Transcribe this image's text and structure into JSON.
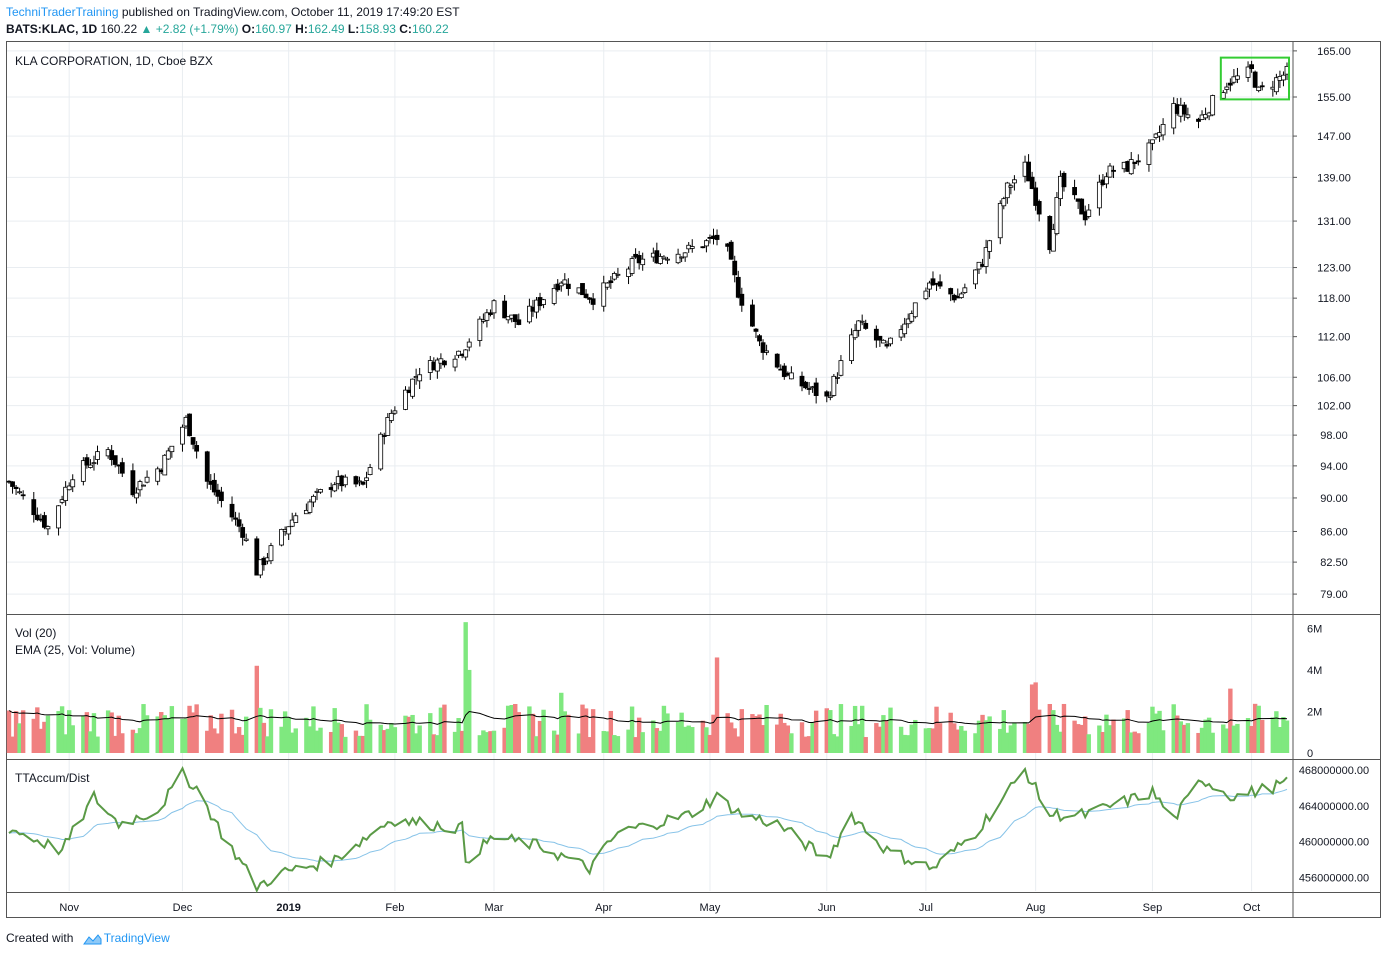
{
  "header": {
    "author": "TechniTraderTraining",
    "published": " published on TradingView.com, October 11, 2019 17:49:20 EST",
    "symbol": "BATS:KLAC, 1D",
    "last": "160.22",
    "change": "▲ +2.82 (+1.79%)",
    "ohlc_o_label": "O:",
    "ohlc_o": "160.97",
    "ohlc_h_label": "H:",
    "ohlc_h": "162.49",
    "ohlc_l_label": "L:",
    "ohlc_l": "158.93",
    "ohlc_c_label": "C:",
    "ohlc_c": "160.22"
  },
  "panes": {
    "price_title": "KLA CORPORATION, 1D, Cboe BZX",
    "volume_title": "Vol (20)",
    "volume_ema_title": "EMA (25, Vol: Volume)",
    "accum_title": "TTAccum/Dist"
  },
  "footer": {
    "created_with": "Created with",
    "brand": "TradingView"
  },
  "colors": {
    "up_volume": "#7fe87f",
    "down_volume": "#f08080",
    "accum_line": "#5a9a46",
    "accum_signal": "#87c3e8",
    "highlight_box": "#33cc33",
    "brand": "#2196f3"
  },
  "chart_data": [
    {
      "type": "candlestick",
      "pane": "price",
      "x_ticks": [
        "Nov",
        "Dec",
        "2019",
        "Feb",
        "Mar",
        "Apr",
        "May",
        "Jun",
        "Jul",
        "Aug",
        "Sep",
        "Oct"
      ],
      "y_ticks": [
        "165.00",
        "155.00",
        "147.00",
        "139.00",
        "131.00",
        "123.00",
        "118.00",
        "112.00",
        "106.00",
        "102.00",
        "98.00",
        "94.00",
        "90.00",
        "86.00",
        "82.50",
        "79.00"
      ],
      "y_scale": "log",
      "ylim": [
        77,
        167
      ],
      "anchors": [
        [
          "2018-10-15",
          92
        ],
        [
          "2018-10-26",
          86.5
        ],
        [
          "2018-11-02",
          93
        ],
        [
          "2018-11-12",
          96
        ],
        [
          "2018-11-19",
          91
        ],
        [
          "2018-11-27",
          94
        ],
        [
          "2018-12-04",
          100
        ],
        [
          "2018-12-10",
          92
        ],
        [
          "2018-12-20",
          86
        ],
        [
          "2018-12-24",
          81.5
        ],
        [
          "2019-01-04",
          88
        ],
        [
          "2019-01-15",
          92
        ],
        [
          "2019-01-23",
          91.5
        ],
        [
          "2019-01-31",
          101
        ],
        [
          "2019-02-08",
          107
        ],
        [
          "2019-02-20",
          110
        ],
        [
          "2019-03-01",
          117
        ],
        [
          "2019-03-08",
          114
        ],
        [
          "2019-03-20",
          121
        ],
        [
          "2019-03-29",
          118
        ],
        [
          "2019-04-10",
          124
        ],
        [
          "2019-04-25",
          126
        ],
        [
          "2019-05-03",
          128
        ],
        [
          "2019-05-06",
          125.5
        ],
        [
          "2019-05-09",
          119
        ],
        [
          "2019-05-15",
          111
        ],
        [
          "2019-05-23",
          106
        ],
        [
          "2019-06-03",
          103
        ],
        [
          "2019-06-12",
          114
        ],
        [
          "2019-06-20",
          110
        ],
        [
          "2019-07-02",
          120.5
        ],
        [
          "2019-07-10",
          118
        ],
        [
          "2019-07-17",
          124
        ],
        [
          "2019-07-24",
          137
        ],
        [
          "2019-07-29",
          141
        ],
        [
          "2019-08-05",
          127
        ],
        [
          "2019-08-08",
          138
        ],
        [
          "2019-08-15",
          132
        ],
        [
          "2019-08-21",
          140
        ],
        [
          "2019-08-27",
          141
        ],
        [
          "2019-09-03",
          145
        ],
        [
          "2019-09-09",
          153
        ],
        [
          "2019-09-16",
          150
        ],
        [
          "2019-09-24",
          158
        ],
        [
          "2019-10-01",
          160.5
        ],
        [
          "2019-10-03",
          156
        ],
        [
          "2019-10-11",
          160.22
        ]
      ],
      "highlight": {
        "from": "2019-09-24",
        "to": "2019-10-11",
        "low": 154.5,
        "high": 163.5
      }
    },
    {
      "type": "bar",
      "pane": "volume",
      "name": "Vol (20)",
      "y_ticks": [
        "6M",
        "4M",
        "2M",
        "0"
      ],
      "ylim": [
        0,
        6500000
      ],
      "base_volume": 1700000,
      "spikes": [
        [
          "2018-12-24",
          4200000
        ],
        [
          "2019-02-21",
          6300000
        ],
        [
          "2019-02-22",
          4000000
        ],
        [
          "2019-03-20",
          2900000
        ],
        [
          "2019-05-03",
          4600000
        ],
        [
          "2019-07-31",
          3300000
        ],
        [
          "2019-08-01",
          3400000
        ],
        [
          "2019-09-25",
          3100000
        ]
      ],
      "ema_series": "EMA (25, Vol: Volume)"
    },
    {
      "type": "line",
      "pane": "accum",
      "name": "TTAccum/Dist",
      "y_ticks": [
        "468000000.00",
        "464000000.00",
        "460000000.00",
        "456000000.00"
      ],
      "ylim": [
        454500000,
        469000000
      ],
      "anchors": [
        [
          "2018-10-15",
          461500000
        ],
        [
          "2018-10-30",
          459000000
        ],
        [
          "2018-11-08",
          465000000
        ],
        [
          "2018-11-15",
          462000000
        ],
        [
          "2018-11-26",
          463500000
        ],
        [
          "2018-12-03",
          467500000
        ],
        [
          "2018-12-07",
          466000000
        ],
        [
          "2018-12-14",
          461000000
        ],
        [
          "2018-12-24",
          455000000
        ],
        [
          "2018-12-31",
          456500000
        ],
        [
          "2019-01-15",
          458000000
        ],
        [
          "2019-01-31",
          462500000
        ],
        [
          "2019-02-20",
          461500000
        ],
        [
          "2019-02-21",
          458000000
        ],
        [
          "2019-03-01",
          460500000
        ],
        [
          "2019-03-14",
          459500000
        ],
        [
          "2019-03-28",
          457000000
        ],
        [
          "2019-04-05",
          461000000
        ],
        [
          "2019-04-25",
          463000000
        ],
        [
          "2019-05-03",
          465000000
        ],
        [
          "2019-05-10",
          463000000
        ],
        [
          "2019-05-20",
          462000000
        ],
        [
          "2019-06-03",
          458000000
        ],
        [
          "2019-06-10",
          463000000
        ],
        [
          "2019-06-20",
          459000000
        ],
        [
          "2019-07-03",
          457000000
        ],
        [
          "2019-07-15",
          461000000
        ],
        [
          "2019-07-29",
          468000000
        ],
        [
          "2019-08-05",
          463000000
        ],
        [
          "2019-08-15",
          463000000
        ],
        [
          "2019-09-03",
          465500000
        ],
        [
          "2019-09-09",
          462500000
        ],
        [
          "2019-09-17",
          467000000
        ],
        [
          "2019-09-26",
          465000000
        ],
        [
          "2019-10-11",
          466500000
        ]
      ],
      "signal_series": "moving average (light blue)"
    }
  ]
}
